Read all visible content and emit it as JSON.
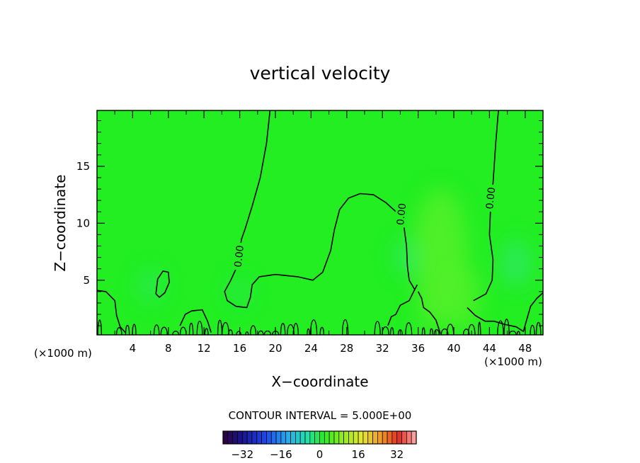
{
  "chart_data": {
    "type": "heatmap",
    "title": "vertical velocity",
    "xlabel": "X−coordinate",
    "ylabel": "Z−coordinate",
    "x_unit_left": "(×1000 m)",
    "x_unit_right": "(×1000 m)",
    "xlim": [
      0,
      50
    ],
    "ylim": [
      0.2,
      19.9
    ],
    "x_ticks": [
      4,
      8,
      12,
      16,
      20,
      24,
      28,
      32,
      36,
      40,
      44,
      48
    ],
    "x_tick_labels": [
      "4",
      "8",
      "12",
      "16",
      "20",
      "24",
      "28",
      "32",
      "36",
      "40",
      "44",
      "48"
    ],
    "y_ticks": [
      5,
      10,
      15
    ],
    "y_tick_labels": [
      "5",
      "10",
      "15"
    ],
    "grid": false,
    "contour_interval_text": "CONTOUR INTERVAL = 5.000E+00",
    "contour_value_labels": [
      {
        "text": "0.00",
        "x": 15.9,
        "z": 7.1
      },
      {
        "text": "0.00",
        "x": 34.1,
        "z": 10.8
      },
      {
        "text": "0.00",
        "x": 44.1,
        "z": 12.2
      }
    ],
    "zero_contours": [
      [
        [
          19.4,
          19.9
        ],
        [
          19.0,
          17.0
        ],
        [
          18.3,
          14.0
        ],
        [
          17.4,
          11.5
        ],
        [
          16.6,
          9.5
        ],
        [
          16.2,
          8.6
        ],
        [
          15.7,
          6.2
        ],
        [
          15.0,
          5.0
        ],
        [
          14.3,
          4.0
        ],
        [
          14.6,
          3.2
        ],
        [
          15.6,
          2.7
        ],
        [
          16.8,
          2.6
        ],
        [
          17.2,
          3.5
        ],
        [
          17.4,
          4.6
        ],
        [
          18.2,
          5.3
        ],
        [
          20.0,
          5.5
        ],
        [
          22.5,
          5.3
        ],
        [
          24.2,
          5.0
        ],
        [
          25.3,
          5.7
        ],
        [
          26.2,
          7.6
        ],
        [
          26.6,
          9.4
        ],
        [
          27.2,
          11.2
        ],
        [
          28.2,
          12.2
        ],
        [
          29.5,
          12.6
        ],
        [
          31.0,
          12.5
        ],
        [
          32.4,
          11.8
        ],
        [
          33.8,
          10.8
        ],
        [
          34.4,
          9.8
        ],
        [
          34.7,
          8.0
        ],
        [
          34.8,
          6.2
        ],
        [
          35.0,
          5.0
        ],
        [
          35.6,
          4.2
        ]
      ],
      [
        [
          45.0,
          19.9
        ],
        [
          44.7,
          17.0
        ],
        [
          44.4,
          13.5
        ],
        [
          44.1,
          11.0
        ],
        [
          44.0,
          9.0
        ],
        [
          44.4,
          6.8
        ],
        [
          44.3,
          5.0
        ],
        [
          43.6,
          3.8
        ],
        [
          42.2,
          3.2
        ]
      ],
      [
        [
          0.0,
          4.1
        ],
        [
          1.0,
          4.0
        ],
        [
          2.0,
          3.2
        ],
        [
          2.2,
          1.9
        ],
        [
          2.6,
          0.9
        ],
        [
          3.2,
          0.4
        ]
      ],
      [
        [
          6.6,
          3.8
        ],
        [
          6.8,
          5.1
        ],
        [
          7.4,
          5.8
        ],
        [
          8.0,
          5.7
        ],
        [
          8.1,
          4.8
        ],
        [
          7.6,
          3.9
        ],
        [
          7.0,
          3.5
        ],
        [
          6.6,
          3.8
        ]
      ],
      [
        [
          9.3,
          1.0
        ],
        [
          9.9,
          2.0
        ],
        [
          10.6,
          2.3
        ],
        [
          11.8,
          2.4
        ],
        [
          12.4,
          1.4
        ],
        [
          12.8,
          0.4
        ]
      ],
      [
        [
          35.9,
          4.6
        ],
        [
          35.5,
          4.0
        ],
        [
          35.0,
          3.2
        ],
        [
          34.0,
          2.8
        ],
        [
          33.5,
          2.0
        ],
        [
          33.0,
          1.8
        ],
        [
          32.6,
          1.0
        ]
      ],
      [
        [
          38.5,
          0.3
        ],
        [
          38.0,
          1.5
        ],
        [
          37.3,
          2.2
        ],
        [
          36.6,
          2.6
        ],
        [
          36.4,
          3.4
        ],
        [
          36.0,
          4.0
        ]
      ],
      [
        [
          41.5,
          2.6
        ],
        [
          42.4,
          1.9
        ],
        [
          43.5,
          1.4
        ],
        [
          44.5,
          1.4
        ],
        [
          45.8,
          1.1
        ],
        [
          47.0,
          0.9
        ],
        [
          47.8,
          0.5
        ],
        [
          48.2,
          1.6
        ],
        [
          48.6,
          2.7
        ],
        [
          49.3,
          3.4
        ],
        [
          50.0,
          3.9
        ]
      ]
    ],
    "colorbar": {
      "min": -40,
      "max": 40,
      "step": 2,
      "tick_values": [
        -32,
        -16,
        0,
        16,
        32
      ],
      "tick_labels": [
        "−32",
        "−16",
        "0",
        "16",
        "32"
      ]
    },
    "colors": {
      "field_background": "#22ee22",
      "field_positive": "#55f02a",
      "field_negative": "#33e58a",
      "contour_line": "#000000"
    }
  }
}
